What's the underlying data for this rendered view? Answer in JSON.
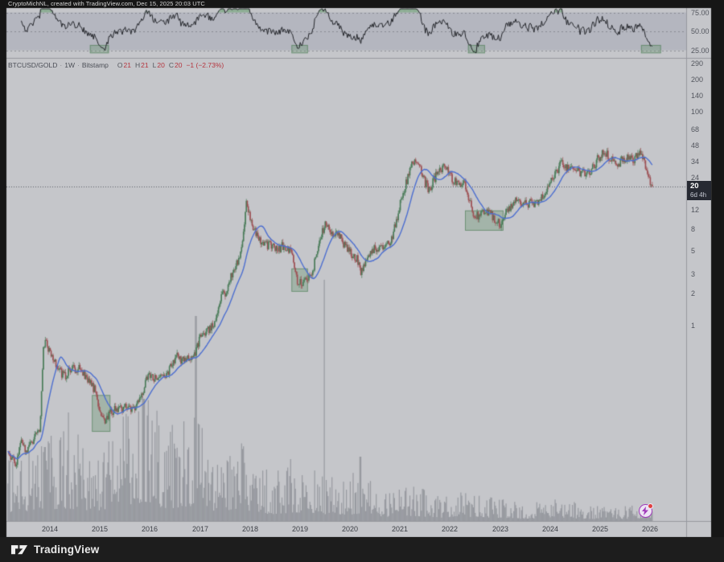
{
  "header": {
    "title": "CryptoMichNL, created with TradingView.com, Dec 15, 2025 20:03 UTC"
  },
  "legend": {
    "symbol": "BTCUSD/GOLD",
    "separator": "·",
    "interval": "1W",
    "exchange": "Bitstamp",
    "ohlc": [
      {
        "label": "O",
        "value": "21"
      },
      {
        "label": "H",
        "value": "21"
      },
      {
        "label": "L",
        "value": "20"
      },
      {
        "label": "C",
        "value": "20"
      }
    ],
    "change": "−1 (−2.73%)"
  },
  "rsi_scale": {
    "labels": [
      "75.00",
      "50.00",
      "25.00"
    ]
  },
  "price_scale": {
    "labels": [
      "290",
      "200",
      "140",
      "100",
      "68",
      "48",
      "34",
      "24",
      "12",
      "8",
      "5",
      "3",
      "2",
      "1"
    ],
    "badge": {
      "price": "20",
      "countdown": "6d 4h"
    }
  },
  "time_scale": {
    "labels": [
      "2014",
      "2015",
      "2016",
      "2017",
      "2018",
      "2019",
      "2020",
      "2021",
      "2022",
      "2023",
      "2024",
      "2025",
      "2026"
    ]
  },
  "footer": {
    "brand": "TradingView"
  },
  "colors": {
    "outer_bg": "#161616",
    "pane_bg": "#c5c6ca",
    "rsi_band": "rgba(122,128,156,0.22)",
    "grid_dash": "rgba(100,102,112,0.55)",
    "separator_line": "#97989f",
    "candle_up": "#4a7c59",
    "candle_down": "#9e5054",
    "ma_line": "#4d6fd0",
    "rsi_line": "#24262b",
    "rsi_fill": "rgba(84,150,92,0.50)",
    "volume": "rgba(103,106,115,0.48)",
    "box_fill": "rgba(86,138,92,0.30)",
    "box_border": "rgba(70,120,78,0.55)",
    "price_line": "#5c5f68",
    "badge_bg": "#262932",
    "event_purple": "#a13cbb"
  },
  "chart_data": {
    "type": "candlestick",
    "title": "BTCUSD/GOLD · 1W · Bitstamp",
    "y_scale": "log",
    "y_ticks": [
      290,
      200,
      140,
      100,
      68,
      48,
      34,
      24,
      12,
      8,
      5,
      3,
      2,
      1
    ],
    "x_ticks": [
      2014,
      2015,
      2016,
      2017,
      2018,
      2019,
      2020,
      2021,
      2022,
      2023,
      2024,
      2025,
      2026
    ],
    "current_price": 20,
    "countdown": "6d 4h",
    "ohlc_last": {
      "open": 21,
      "high": 21,
      "low": 20,
      "close": 20,
      "change": -1,
      "change_pct": -2.73
    },
    "t_start": 2013.16,
    "t_end": 2026.05,
    "ma_window": 20,
    "rsi": {
      "period": 14,
      "levels": [
        25,
        50,
        75
      ],
      "band": [
        25,
        75
      ],
      "scale_labels": [
        75,
        50,
        25
      ]
    },
    "price_anchors": [
      [
        2013.16,
        0.072
      ],
      [
        2013.24,
        0.058
      ],
      [
        2013.32,
        0.052
      ],
      [
        2013.42,
        0.083
      ],
      [
        2013.52,
        0.07
      ],
      [
        2013.62,
        0.078
      ],
      [
        2013.72,
        0.092
      ],
      [
        2013.8,
        0.105
      ],
      [
        2013.87,
        0.58
      ],
      [
        2013.92,
        0.8
      ],
      [
        2013.97,
        0.62
      ],
      [
        2014.05,
        0.52
      ],
      [
        2014.12,
        0.44
      ],
      [
        2014.22,
        0.36
      ],
      [
        2014.32,
        0.34
      ],
      [
        2014.42,
        0.4
      ],
      [
        2014.52,
        0.38
      ],
      [
        2014.62,
        0.41
      ],
      [
        2014.72,
        0.33
      ],
      [
        2014.82,
        0.28
      ],
      [
        2014.92,
        0.24
      ],
      [
        2015.0,
        0.165
      ],
      [
        2015.08,
        0.125
      ],
      [
        2015.16,
        0.14
      ],
      [
        2015.24,
        0.155
      ],
      [
        2015.34,
        0.17
      ],
      [
        2015.44,
        0.165
      ],
      [
        2015.54,
        0.18
      ],
      [
        2015.64,
        0.17
      ],
      [
        2015.74,
        0.185
      ],
      [
        2015.84,
        0.235
      ],
      [
        2015.92,
        0.3
      ],
      [
        2016.0,
        0.36
      ],
      [
        2016.08,
        0.33
      ],
      [
        2016.16,
        0.34
      ],
      [
        2016.26,
        0.345
      ],
      [
        2016.36,
        0.37
      ],
      [
        2016.44,
        0.42
      ],
      [
        2016.52,
        0.52
      ],
      [
        2016.6,
        0.49
      ],
      [
        2016.7,
        0.46
      ],
      [
        2016.8,
        0.52
      ],
      [
        2016.9,
        0.55
      ],
      [
        2016.98,
        0.72
      ],
      [
        2017.06,
        0.82
      ],
      [
        2017.14,
        0.95
      ],
      [
        2017.22,
        0.93
      ],
      [
        2017.3,
        1.05
      ],
      [
        2017.38,
        1.5
      ],
      [
        2017.46,
        2.1
      ],
      [
        2017.54,
        2.0
      ],
      [
        2017.62,
        2.9
      ],
      [
        2017.7,
        3.4
      ],
      [
        2017.78,
        4.4
      ],
      [
        2017.86,
        6.2
      ],
      [
        2017.93,
        15.5
      ],
      [
        2017.98,
        11.5
      ],
      [
        2018.04,
        9.0
      ],
      [
        2018.12,
        7.6
      ],
      [
        2018.2,
        6.4
      ],
      [
        2018.28,
        6.0
      ],
      [
        2018.36,
        5.5
      ],
      [
        2018.44,
        5.8
      ],
      [
        2018.52,
        5.1
      ],
      [
        2018.6,
        5.3
      ],
      [
        2018.68,
        5.6
      ],
      [
        2018.76,
        5.2
      ],
      [
        2018.84,
        4.9
      ],
      [
        2018.9,
        3.1
      ],
      [
        2018.96,
        2.55
      ],
      [
        2019.04,
        2.45
      ],
      [
        2019.12,
        2.6
      ],
      [
        2019.2,
        2.9
      ],
      [
        2019.28,
        3.6
      ],
      [
        2019.36,
        5.2
      ],
      [
        2019.44,
        7.2
      ],
      [
        2019.5,
        8.8
      ],
      [
        2019.58,
        7.8
      ],
      [
        2019.66,
        7.0
      ],
      [
        2019.74,
        7.4
      ],
      [
        2019.82,
        6.4
      ],
      [
        2019.9,
        5.6
      ],
      [
        2019.98,
        4.9
      ],
      [
        2020.06,
        4.6
      ],
      [
        2020.14,
        4.2
      ],
      [
        2020.22,
        2.95
      ],
      [
        2020.3,
        3.9
      ],
      [
        2020.38,
        4.6
      ],
      [
        2020.46,
        5.2
      ],
      [
        2020.54,
        5.1
      ],
      [
        2020.62,
        5.5
      ],
      [
        2020.7,
        5.6
      ],
      [
        2020.78,
        5.9
      ],
      [
        2020.86,
        7.2
      ],
      [
        2020.94,
        10.0
      ],
      [
        2021.02,
        15.5
      ],
      [
        2021.1,
        19.5
      ],
      [
        2021.18,
        27.0
      ],
      [
        2021.26,
        33.0
      ],
      [
        2021.34,
        35.0
      ],
      [
        2021.42,
        29.0
      ],
      [
        2021.5,
        22.0
      ],
      [
        2021.58,
        18.5
      ],
      [
        2021.66,
        22.0
      ],
      [
        2021.74,
        26.0
      ],
      [
        2021.82,
        27.5
      ],
      [
        2021.9,
        31.0
      ],
      [
        2021.98,
        27.0
      ],
      [
        2022.06,
        23.0
      ],
      [
        2022.14,
        22.5
      ],
      [
        2022.22,
        21.5
      ],
      [
        2022.3,
        20.5
      ],
      [
        2022.38,
        15.0
      ],
      [
        2022.46,
        11.2
      ],
      [
        2022.54,
        10.4
      ],
      [
        2022.62,
        11.6
      ],
      [
        2022.7,
        11.9
      ],
      [
        2022.78,
        11.0
      ],
      [
        2022.86,
        10.6
      ],
      [
        2022.94,
        9.2
      ],
      [
        2023.02,
        8.9
      ],
      [
        2023.1,
        11.5
      ],
      [
        2023.18,
        12.8
      ],
      [
        2023.26,
        13.6
      ],
      [
        2023.34,
        14.6
      ],
      [
        2023.42,
        14.2
      ],
      [
        2023.5,
        13.6
      ],
      [
        2023.58,
        14.0
      ],
      [
        2023.66,
        13.5
      ],
      [
        2023.74,
        14.0
      ],
      [
        2023.82,
        15.5
      ],
      [
        2023.9,
        17.5
      ],
      [
        2023.98,
        20.5
      ],
      [
        2024.06,
        23.0
      ],
      [
        2024.14,
        28.0
      ],
      [
        2024.22,
        33.0
      ],
      [
        2024.3,
        31.0
      ],
      [
        2024.38,
        29.0
      ],
      [
        2024.46,
        30.0
      ],
      [
        2024.54,
        27.5
      ],
      [
        2024.62,
        26.5
      ],
      [
        2024.7,
        26.0
      ],
      [
        2024.78,
        27.5
      ],
      [
        2024.86,
        29.5
      ],
      [
        2024.94,
        35.0
      ],
      [
        2025.02,
        39.0
      ],
      [
        2025.1,
        42.0
      ],
      [
        2025.18,
        38.0
      ],
      [
        2025.26,
        34.0
      ],
      [
        2025.34,
        32.0
      ],
      [
        2025.42,
        34.5
      ],
      [
        2025.5,
        36.0
      ],
      [
        2025.58,
        37.0
      ],
      [
        2025.66,
        35.5
      ],
      [
        2025.74,
        38.5
      ],
      [
        2025.82,
        39.5
      ],
      [
        2025.88,
        34.0
      ],
      [
        2025.94,
        27.0
      ],
      [
        2026.0,
        22.5
      ],
      [
        2026.05,
        20.2
      ]
    ],
    "volume_anchors": [
      [
        2013.16,
        45
      ],
      [
        2013.9,
        65
      ],
      [
        2014.37,
        70
      ],
      [
        2014.8,
        55
      ],
      [
        2015.2,
        65
      ],
      [
        2015.6,
        85
      ],
      [
        2015.9,
        110
      ],
      [
        2016.3,
        70
      ],
      [
        2016.92,
        80
      ],
      [
        2017.5,
        45
      ],
      [
        2017.95,
        60
      ],
      [
        2018.4,
        38
      ],
      [
        2018.95,
        48
      ],
      [
        2019.3,
        42
      ],
      [
        2019.7,
        35
      ],
      [
        2020.2,
        38
      ],
      [
        2020.8,
        22
      ],
      [
        2021.2,
        28
      ],
      [
        2021.8,
        18
      ],
      [
        2022.4,
        22
      ],
      [
        2022.95,
        18
      ],
      [
        2023.5,
        12
      ],
      [
        2024.2,
        17
      ],
      [
        2024.8,
        12
      ],
      [
        2025.3,
        10
      ],
      [
        2026.05,
        13
      ]
    ],
    "volume_spikes": [
      [
        2013.9,
        92
      ],
      [
        2014.37,
        135
      ],
      [
        2015.88,
        152
      ],
      [
        2016.92,
        255
      ],
      [
        2019.48,
        300
      ],
      [
        2020.21,
        80
      ]
    ],
    "boxes_price": [
      {
        "t": [
          2014.84,
          2015.21
        ],
        "v": [
          0.102,
          0.225
        ]
      },
      {
        "t": [
          2018.83,
          2019.16
        ],
        "v": [
          2.07,
          3.42
        ]
      },
      {
        "t": [
          2022.3,
          2023.07
        ],
        "v": [
          7.7,
          11.9
        ]
      }
    ],
    "boxes_rsi": [
      {
        "t": [
          2014.8,
          2015.18
        ],
        "r": [
          21,
          32
        ]
      },
      {
        "t": [
          2018.83,
          2019.16
        ],
        "r": [
          21,
          32
        ]
      },
      {
        "t": [
          2022.36,
          2022.7
        ],
        "r": [
          21,
          32
        ]
      },
      {
        "t": [
          2025.82,
          2026.22
        ],
        "r": [
          21,
          32
        ]
      }
    ]
  }
}
